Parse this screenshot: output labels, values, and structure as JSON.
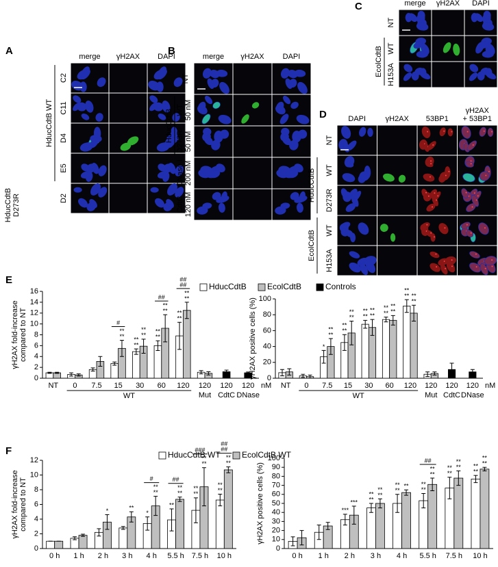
{
  "panels": [
    {
      "letter": "A",
      "columns": [
        [
          "merge"
        ],
        [
          "γH2AX"
        ],
        [
          "DAPI"
        ]
      ],
      "rows": [
        [
          "C2"
        ],
        [
          "C11"
        ],
        [
          "D4"
        ],
        [
          "E5"
        ],
        [
          "D2"
        ]
      ],
      "groups": [
        [
          "HducCdtB WT"
        ],
        [
          "HducCdtB",
          "D273R"
        ]
      ]
    },
    {
      "letter": "B",
      "columns": [
        [
          "merge"
        ],
        [
          "γH2AX"
        ],
        [
          "DAPI"
        ]
      ],
      "rows": [
        [
          "NT"
        ],
        [
          "WT",
          "50 nM"
        ],
        [
          "D273R",
          "50 nM"
        ],
        [
          "DNase I",
          "200 nM"
        ],
        [
          "CdtC",
          "120 nM"
        ]
      ],
      "groups": [
        [
          "HducCdtB"
        ]
      ]
    },
    {
      "letter": "C",
      "columns": [
        [
          "merge"
        ],
        [
          "γH2AX"
        ],
        [
          "DAPI"
        ]
      ],
      "rows": [
        [
          "NT"
        ],
        [
          "WT"
        ],
        [
          "H153A"
        ]
      ],
      "groups": [
        [
          "EcolCdtB"
        ]
      ]
    },
    {
      "letter": "D",
      "columns": [
        [
          "DAPI"
        ],
        [
          "γH2AX"
        ],
        [
          "53BP1"
        ],
        [
          "γH2AX",
          "+ 53BP1"
        ]
      ],
      "rows": [
        [
          "NT"
        ],
        [
          "WT"
        ],
        [
          "D273R"
        ],
        [
          "WT"
        ],
        [
          "H153A"
        ]
      ],
      "groups": [
        [
          "HducCdtB"
        ],
        [
          "EcolCdtB"
        ]
      ]
    }
  ],
  "chart_data": [
    {
      "type": "bar",
      "panel_label": "E",
      "legend": true,
      "ylabel": [
        "γH2AX fold-increase",
        "compared to NT"
      ],
      "categories": [
        "NT",
        "0",
        "7.5",
        "15",
        "30",
        "60",
        "120",
        "120",
        "120",
        "120"
      ],
      "sublabels": [
        null,
        null,
        null,
        null,
        null,
        null,
        null,
        "Mut",
        "CdtC",
        "DNase"
      ],
      "x_group_label": "WT",
      "x_unit": "nM",
      "ylim": [
        0,
        16
      ],
      "yticks": [
        0,
        2,
        4,
        6,
        8,
        10,
        12,
        14,
        16
      ],
      "series": [
        {
          "name": "HducCdtB",
          "color": "#ffffff",
          "values": [
            1,
            0.7,
            1.6,
            2.7,
            4.9,
            6,
            7.8,
            1.1,
            null,
            null
          ],
          "errors": [
            0.1,
            0.3,
            0.3,
            0.3,
            0.5,
            0.9,
            2.5,
            0.3,
            null,
            null
          ],
          "significance": [
            null,
            null,
            null,
            null,
            [
              "**",
              "**"
            ],
            [
              "**",
              "**"
            ],
            [
              "**",
              "**"
            ],
            null,
            null,
            null
          ]
        },
        {
          "name": "EcolCdtB",
          "color": "#bfbfbf",
          "values": [
            1,
            0.6,
            3.1,
            5.5,
            5.9,
            9.2,
            12.5,
            0.9,
            null,
            null
          ],
          "errors": [
            0.1,
            0.2,
            0.9,
            1.5,
            1.3,
            2.5,
            1.5,
            0.3,
            null,
            null
          ],
          "significance": [
            null,
            null,
            null,
            [
              "**",
              "**"
            ],
            [
              "**",
              "**"
            ],
            [
              "**",
              "**"
            ],
            [
              "**",
              "**"
            ],
            null,
            null,
            null
          ]
        },
        {
          "name": "Controls",
          "color": "#000000",
          "values": [
            null,
            null,
            null,
            null,
            null,
            null,
            null,
            null,
            1.2,
            1
          ],
          "errors": [
            null,
            null,
            null,
            null,
            null,
            null,
            null,
            null,
            0.3,
            0.15
          ]
        }
      ],
      "group_significance": [
        null,
        null,
        null,
        [
          "#"
        ],
        null,
        [
          "##"
        ],
        [
          "##",
          "##"
        ],
        null,
        null,
        null
      ]
    },
    {
      "type": "bar",
      "ylabel": [
        "γH2AX positive cells (%)"
      ],
      "categories": [
        "NT",
        "0",
        "7.5",
        "15",
        "30",
        "60",
        "120",
        "120",
        "120",
        "120"
      ],
      "sublabels": [
        null,
        null,
        null,
        null,
        null,
        null,
        null,
        "Mut",
        "CdtC",
        "DNase"
      ],
      "x_group_label": "WT",
      "x_unit": "nM",
      "ylim": [
        0,
        100
      ],
      "yticks": [
        0,
        20,
        40,
        60,
        80,
        100
      ],
      "series": [
        {
          "name": "HducCdtB",
          "color": "#ffffff",
          "values": [
            7,
            3,
            27,
            45,
            68,
            74,
            91,
            5,
            null,
            null
          ],
          "errors": [
            4,
            2,
            8,
            10,
            5,
            3,
            8,
            3,
            null,
            null
          ],
          "significance": [
            null,
            null,
            [
              "*"
            ],
            [
              "**",
              "**"
            ],
            [
              "**",
              "**"
            ],
            [
              "**",
              "**"
            ],
            [
              "**",
              "**"
            ],
            null,
            null,
            null
          ]
        },
        {
          "name": "EcolCdtB",
          "color": "#bfbfbf",
          "values": [
            8,
            2,
            40,
            57,
            64,
            73,
            82,
            6,
            null,
            null
          ],
          "errors": [
            4,
            2,
            10,
            15,
            10,
            6,
            10,
            2,
            null,
            null
          ],
          "significance": [
            null,
            null,
            [
              "**",
              "**"
            ],
            [
              "**",
              "**"
            ],
            [
              "**",
              "**"
            ],
            [
              "**",
              "**"
            ],
            [
              "**",
              "**"
            ],
            null,
            null,
            null
          ]
        },
        {
          "name": "Controls",
          "color": "#000000",
          "values": [
            null,
            null,
            null,
            null,
            null,
            null,
            null,
            null,
            11,
            8
          ],
          "errors": [
            null,
            null,
            null,
            null,
            null,
            null,
            null,
            null,
            8,
            3
          ]
        }
      ]
    },
    {
      "type": "bar",
      "panel_label": "F",
      "legend": true,
      "ylabel": [
        "γH2AX fold-increase",
        "compared to NT"
      ],
      "categories": [
        "0 h",
        "1 h",
        "2 h",
        "3 h",
        "4 h",
        "5.5 h",
        "7.5 h",
        "10 h"
      ],
      "ylim": [
        0,
        12
      ],
      "yticks": [
        0,
        2,
        4,
        6,
        8,
        10,
        12
      ],
      "series": [
        {
          "name": "HducCdtB WT",
          "color": "#ffffff",
          "values": [
            1,
            1.4,
            2.2,
            2.8,
            3.4,
            3.9,
            5.2,
            6.6
          ],
          "errors": [
            0,
            0.2,
            0.5,
            0.2,
            0.9,
            1.5,
            1.7,
            0.8
          ],
          "significance": [
            null,
            null,
            null,
            null,
            [
              "*"
            ],
            [
              "**"
            ],
            [
              "**",
              "**"
            ],
            [
              "**",
              "**"
            ]
          ]
        },
        {
          "name": "EcolCdtB WT",
          "color": "#bfbfbf",
          "values": [
            1,
            1.8,
            3.6,
            4.3,
            5.8,
            6.7,
            8.4,
            10.7
          ],
          "errors": [
            0,
            0.15,
            1,
            0.7,
            1.3,
            0.3,
            2.6,
            0.4
          ],
          "significance": [
            null,
            null,
            [
              "*"
            ],
            [
              "**"
            ],
            [
              "**",
              "**"
            ],
            [
              "**",
              "**"
            ],
            [
              "**",
              "**"
            ],
            [
              "**",
              "**"
            ]
          ]
        }
      ],
      "group_significance": [
        null,
        null,
        null,
        null,
        [
          "#"
        ],
        [
          "##"
        ],
        [
          "###"
        ],
        [
          "##",
          "##"
        ]
      ]
    },
    {
      "type": "bar",
      "ylabel": [
        "γH2AX positive cells (%)"
      ],
      "categories": [
        "0 h",
        "1 h",
        "2 h",
        "3 h",
        "4 h",
        "5.5 h",
        "7.5 h",
        "10 h"
      ],
      "ylim": [
        0,
        100
      ],
      "yticks": [
        0,
        10,
        20,
        30,
        40,
        50,
        60,
        70,
        80,
        90,
        100
      ],
      "series": [
        {
          "name": "HducCdtB WT",
          "color": "#ffffff",
          "values": [
            8,
            18,
            32,
            45,
            50,
            53,
            67,
            77
          ],
          "errors": [
            5,
            8,
            6,
            5,
            10,
            8,
            12,
            4
          ],
          "significance": [
            null,
            null,
            [
              "***"
            ],
            [
              "**",
              "**"
            ],
            [
              "**",
              "**"
            ],
            [
              "**",
              "**"
            ],
            [
              "**",
              "**"
            ],
            [
              "**",
              "**"
            ]
          ]
        },
        {
          "name": "EcolCdtB WT",
          "color": "#bfbfbf",
          "values": [
            12,
            25,
            37,
            50,
            62,
            71,
            78,
            88
          ],
          "errors": [
            8,
            4,
            10,
            5,
            3,
            7,
            8,
            2
          ],
          "significance": [
            null,
            null,
            [
              "***"
            ],
            [
              "**",
              "**"
            ],
            [
              "**"
            ],
            [
              "**",
              "**"
            ],
            [
              "**",
              "**"
            ],
            [
              "**",
              "**"
            ]
          ]
        }
      ],
      "group_significance": [
        null,
        null,
        null,
        null,
        null,
        [
          "##"
        ],
        null,
        null
      ]
    }
  ]
}
